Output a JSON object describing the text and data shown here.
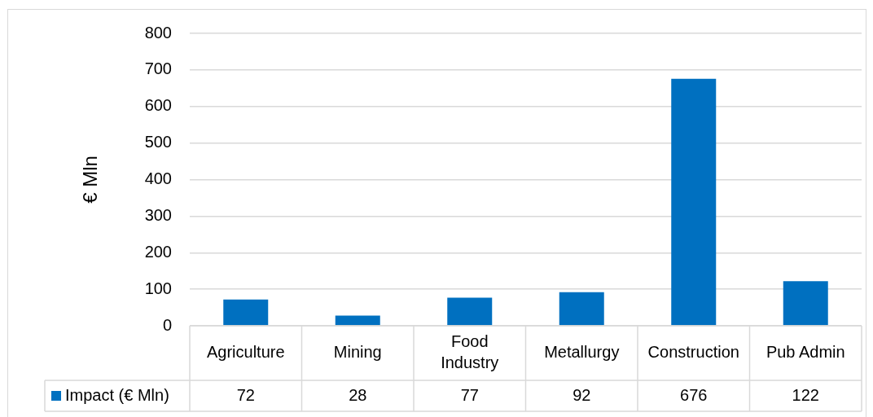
{
  "chart_data": {
    "type": "bar",
    "ylabel": "€ Mln",
    "categories": [
      "Agriculture",
      "Mining",
      "Food Industry",
      "Metallurgy",
      "Construction",
      "Pub Admin"
    ],
    "series": [
      {
        "name": "Impact (€ Mln)",
        "color": "#0070c0",
        "values": [
          72,
          28,
          77,
          92,
          676,
          122
        ]
      }
    ],
    "ylim": [
      0,
      800
    ],
    "yticks": [
      0,
      100,
      200,
      300,
      400,
      500,
      600,
      700,
      800
    ],
    "grid": "y",
    "legend": "bottom left",
    "data_labels": true
  }
}
